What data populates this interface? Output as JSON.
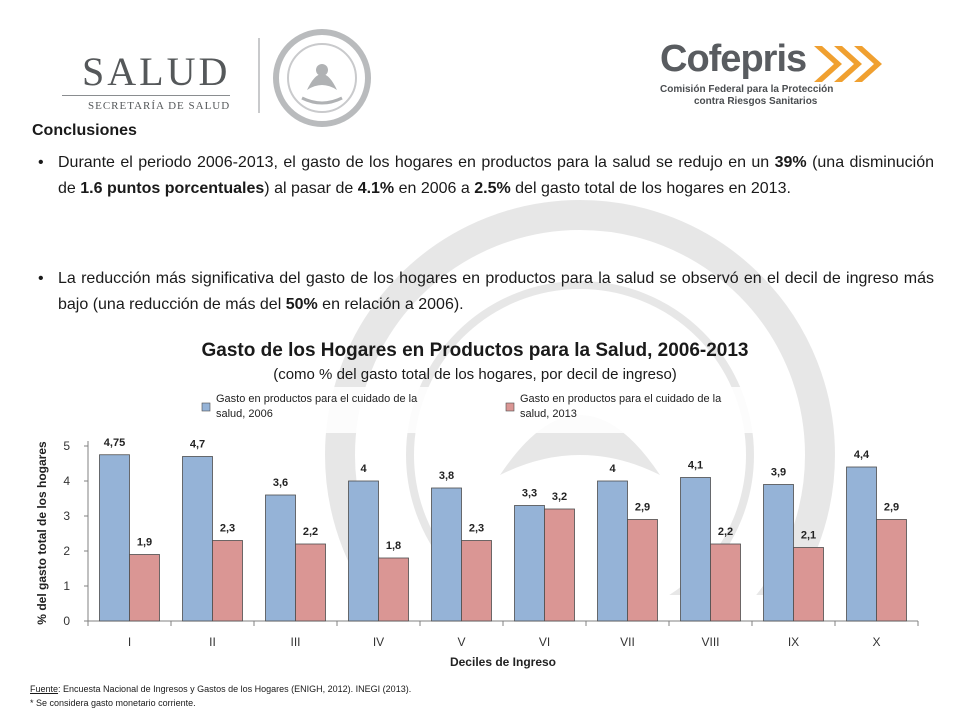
{
  "header": {
    "salud_logo": {
      "title": "SALUD",
      "subtitle": "SECRETARÍA DE SALUD"
    },
    "cofepris_logo": {
      "name": "Cofepris",
      "subtitle_line1": "Comisión Federal para la Protección",
      "subtitle_line2": "contra Riesgos Sanitarios"
    }
  },
  "content": {
    "heading": "Conclusiones",
    "bullets": [
      [
        {
          "t": "Durante el periodo 2006-2013, el gasto de los hogares en productos para la salud se redujo en un ",
          "b": false
        },
        {
          "t": "39%",
          "b": true
        },
        {
          "t": " (una disminución de ",
          "b": false
        },
        {
          "t": "1.6 puntos porcentuales",
          "b": true
        },
        {
          "t": ") al pasar de ",
          "b": false
        },
        {
          "t": "4.1%",
          "b": true
        },
        {
          "t": " en 2006 a ",
          "b": false
        },
        {
          "t": "2.5%",
          "b": true
        },
        {
          "t": " del gasto total de los hogares en 2013.",
          "b": false
        }
      ],
      [
        {
          "t": "La reducción más significativa del gasto de los hogares en productos para la salud se observó en el decil de ingreso más bajo (una reducción de más del ",
          "b": false
        },
        {
          "t": "50%",
          "b": true
        },
        {
          "t": " en relación a 2006).",
          "b": false
        }
      ]
    ]
  },
  "chart_data": {
    "type": "bar",
    "title": "Gasto de los Hogares en Productos para la Salud, 2006-2013",
    "subtitle": "(como % del gasto total de los hogares, por decil de ingreso)",
    "xlabel": "Deciles de Ingreso",
    "ylabel": "% del gasto total de los hogares",
    "categories": [
      "I",
      "II",
      "III",
      "IV",
      "V",
      "VI",
      "VII",
      "VIII",
      "IX",
      "X"
    ],
    "ylim": [
      0,
      5
    ],
    "yticks": [
      0,
      1,
      2,
      3,
      4,
      5
    ],
    "grid": false,
    "legend_position": "top",
    "series": [
      {
        "name": "Gasto en productos para el cuidado de la salud, 2006",
        "values": [
          4.75,
          4.7,
          3.6,
          4,
          3.8,
          3.3,
          4,
          4.1,
          3.9,
          4.4
        ],
        "labels": [
          "4,75",
          "4,7",
          "3,6",
          "4",
          "3,8",
          "3,3",
          "4",
          "4,1",
          "3,9",
          "4,4"
        ],
        "color": "#95b3d7"
      },
      {
        "name": "Gasto en productos para el cuidado de la salud, 2013",
        "values": [
          1.9,
          2.3,
          2.2,
          1.8,
          2.3,
          3.2,
          2.9,
          2.2,
          2.1,
          2.9
        ],
        "labels": [
          "1,9",
          "2,3",
          "2,2",
          "1,8",
          "2,3",
          "3,2",
          "2,9",
          "2,2",
          "2,1",
          "2,9"
        ],
        "color": "#da9694"
      }
    ]
  },
  "footnotes": {
    "source_label": "Fuente",
    "source_text": ": Encuesta Nacional de Ingresos y Gastos de los Hogares (ENIGH, 2012). INEGI (2013).",
    "note": "* Se considera gasto monetario corriente."
  }
}
